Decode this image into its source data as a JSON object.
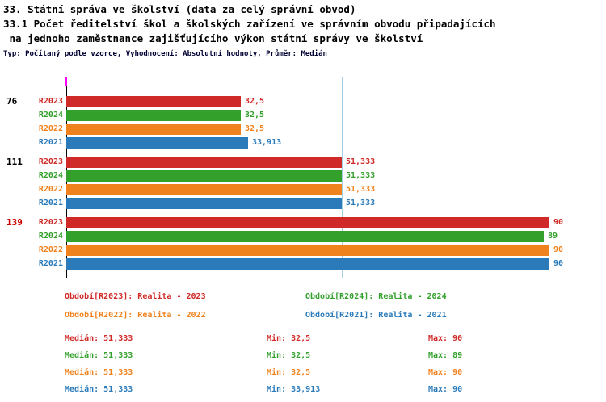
{
  "page": {
    "title_line1": "33. Státní správa ve školství (data za celý správní obvod)",
    "title_line2": "33.1 Počet ředitelství škol a školských zařízení ve správním obvodu připadajících",
    "title_line3": " na jednoho zaměstnance zajišťujícího výkon státní správy ve školství",
    "subtitle": "Typ: Počítaný podle vzorce, Vyhodnocení: Absolutní hodnoty, Průměr: Medián"
  },
  "colors": {
    "R2023": "#cf2a27",
    "R2024": "#33a02c",
    "R2022": "#f0821e",
    "R2021": "#2b7bba",
    "median_line": "#a6cee3",
    "axis": "#000000",
    "tick": "#ff00ff",
    "group_label": "#000000",
    "group_label_highlight": "#cc0000",
    "subtitle_text": "#000033"
  },
  "chart_data": {
    "type": "bar",
    "orientation": "horizontal",
    "xlim": [
      0,
      90
    ],
    "grid": false,
    "median_value": 51.333,
    "median_line": "vertical light blue line at median 51,333",
    "series_order": [
      "R2023",
      "R2024",
      "R2022",
      "R2021"
    ],
    "groups": [
      {
        "label": "76",
        "highlight": false,
        "bars": [
          {
            "series": "R2023",
            "value": 32.5,
            "display": "32,5"
          },
          {
            "series": "R2024",
            "value": 32.5,
            "display": "32,5"
          },
          {
            "series": "R2022",
            "value": 32.5,
            "display": "32,5"
          },
          {
            "series": "R2021",
            "value": 33.913,
            "display": "33,913"
          }
        ]
      },
      {
        "label": "111",
        "highlight": false,
        "bars": [
          {
            "series": "R2023",
            "value": 51.333,
            "display": "51,333"
          },
          {
            "series": "R2024",
            "value": 51.333,
            "display": "51,333"
          },
          {
            "series": "R2022",
            "value": 51.333,
            "display": "51,333"
          },
          {
            "series": "R2021",
            "value": 51.333,
            "display": "51,333"
          }
        ]
      },
      {
        "label": "139",
        "highlight": true,
        "bars": [
          {
            "series": "R2023",
            "value": 90,
            "display": "90"
          },
          {
            "series": "R2024",
            "value": 89,
            "display": "89"
          },
          {
            "series": "R2022",
            "value": 90,
            "display": "90"
          },
          {
            "series": "R2021",
            "value": 90,
            "display": "90"
          }
        ]
      }
    ]
  },
  "legend": [
    {
      "color_key": "R2023",
      "label": "Období[R2023]: Realita - 2023"
    },
    {
      "color_key": "R2024",
      "label": "Období[R2024]: Realita - 2024"
    },
    {
      "color_key": "R2022",
      "label": "Období[R2022]: Realita - 2022"
    },
    {
      "color_key": "R2021",
      "label": "Období[R2021]: Realita - 2021"
    }
  ],
  "stats": [
    {
      "color_key": "R2023",
      "median": "Medián: 51,333",
      "min": "Min: 32,5",
      "max": "Max: 90"
    },
    {
      "color_key": "R2024",
      "median": "Medián: 51,333",
      "min": "Min: 32,5",
      "max": "Max: 89"
    },
    {
      "color_key": "R2022",
      "median": "Medián: 51,333",
      "min": "Min: 32,5",
      "max": "Max: 90"
    },
    {
      "color_key": "R2021",
      "median": "Medián: 51,333",
      "min": "Min: 33,913",
      "max": "Max: 90"
    }
  ]
}
